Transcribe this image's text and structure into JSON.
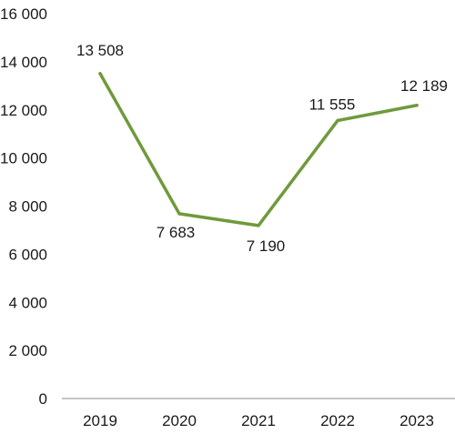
{
  "chart_data": {
    "type": "line",
    "categories": [
      "2019",
      "2020",
      "2021",
      "2022",
      "2023"
    ],
    "series": [
      {
        "values": [
          13508,
          7683,
          7190,
          11555,
          12189
        ],
        "color": "#6f9a3c"
      }
    ],
    "data_labels": [
      "13 508",
      "7 683",
      "7 190",
      "11 555",
      "12 189"
    ],
    "y_ticks": [
      0,
      2000,
      4000,
      6000,
      8000,
      10000,
      12000,
      14000,
      16000
    ],
    "y_tick_labels": [
      "0",
      "2 000",
      "4 000",
      "6 000",
      "8 000",
      "10 000",
      "12 000",
      "14 000",
      "16 000"
    ],
    "ylim": [
      0,
      16000
    ],
    "grid": false,
    "title": "",
    "xlabel": "",
    "ylabel": ""
  }
}
